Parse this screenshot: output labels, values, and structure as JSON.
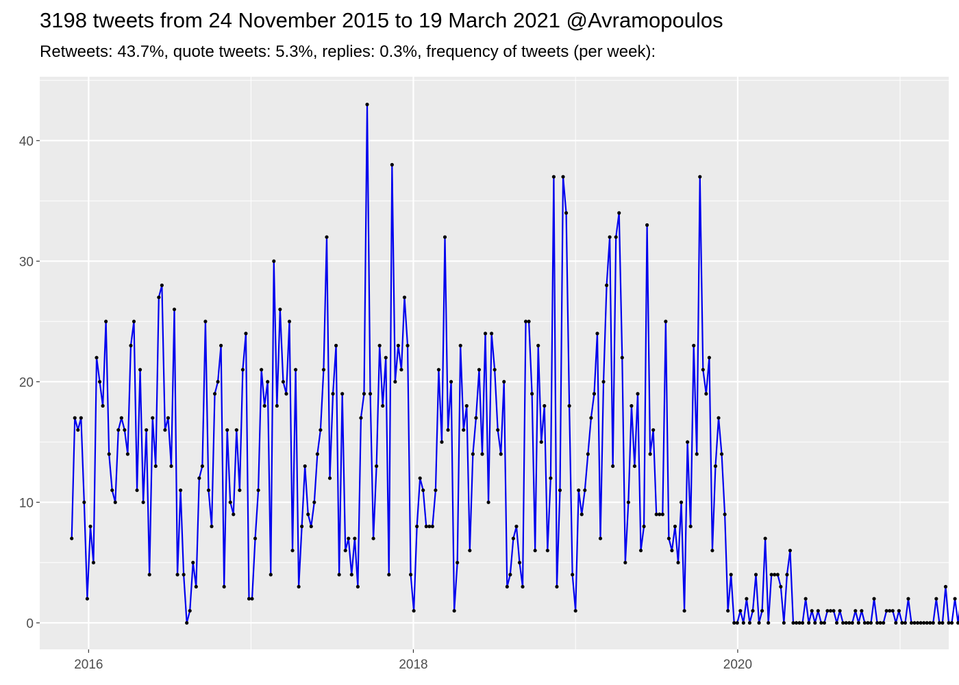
{
  "chart_data": {
    "type": "line",
    "title": "3198 tweets from 24 November 2015 to 19 March 2021 @Avramopoulos",
    "subtitle": "Retweets: 43.7%, quote tweets: 5.3%, replies: 0.3%, frequency of tweets (per week):",
    "xlabel": "",
    "ylabel": "",
    "x_start": "2015-11-24",
    "x_interval": "week",
    "xlim": [
      "2015-09-13",
      "2021-04-20"
    ],
    "ylim": [
      -2.2,
      45.3
    ],
    "x_ticks": [
      {
        "date": "2016-01-01",
        "label": "2016"
      },
      {
        "date": "2018-01-01",
        "label": "2018"
      },
      {
        "date": "2020-01-01",
        "label": "2020"
      }
    ],
    "y_ticks": [
      0,
      10,
      20,
      30,
      40
    ],
    "grid": true,
    "legend": "none",
    "colors": {
      "line": "#0000ee",
      "point": "#000000",
      "panel": "#ebebeb",
      "grid": "#ffffff"
    },
    "series": [
      {
        "values": [
          7,
          17,
          16,
          17,
          10,
          2,
          8,
          5,
          22,
          20,
          18,
          25,
          14,
          11,
          10,
          16,
          17,
          16,
          14,
          23,
          25,
          11,
          21,
          10,
          16,
          4,
          17,
          13,
          27,
          28,
          16,
          17,
          13,
          26,
          4,
          11,
          4,
          0,
          1,
          5,
          3,
          12,
          13,
          25,
          11,
          8,
          19,
          20,
          23,
          3,
          16,
          10,
          9,
          16,
          11,
          21,
          24,
          2,
          2,
          7,
          11,
          21,
          18,
          20,
          4,
          30,
          18,
          26,
          20,
          19,
          25,
          6,
          21,
          3,
          8,
          13,
          9,
          8,
          10,
          14,
          16,
          21,
          32,
          12,
          19,
          23,
          4,
          19,
          6,
          7,
          4,
          7,
          3,
          17,
          19,
          43,
          19,
          7,
          13,
          23,
          18,
          22,
          4,
          38,
          20,
          23,
          21,
          27,
          23,
          4,
          1,
          8,
          12,
          11,
          8,
          8,
          8,
          11,
          21,
          15,
          32,
          16,
          20,
          1,
          5,
          23,
          16,
          18,
          6,
          14,
          17,
          21,
          14,
          24,
          10,
          24,
          21,
          16,
          14,
          20,
          3,
          4,
          7,
          8,
          5,
          3,
          25,
          25,
          19,
          6,
          23,
          15,
          18,
          6,
          12,
          37,
          3,
          11,
          37,
          34,
          18,
          4,
          1,
          11,
          9,
          11,
          14,
          17,
          19,
          24,
          7,
          20,
          28,
          32,
          13,
          32,
          34,
          22,
          5,
          10,
          18,
          13,
          19,
          6,
          8,
          33,
          14,
          16,
          9,
          9,
          9,
          25,
          7,
          6,
          8,
          5,
          10,
          1,
          15,
          8,
          23,
          14,
          37,
          21,
          19,
          22,
          6,
          13,
          17,
          14,
          9,
          1,
          4,
          0,
          0,
          1,
          0,
          2,
          0,
          1,
          4,
          0,
          1,
          7,
          0,
          4,
          4,
          4,
          3,
          0,
          4,
          6,
          0,
          0,
          0,
          0,
          2,
          0,
          1,
          0,
          1,
          0,
          0,
          1,
          1,
          1,
          0,
          1,
          0,
          0,
          0,
          0,
          1,
          0,
          1,
          0,
          0,
          0,
          2,
          0,
          0,
          0,
          1,
          1,
          1,
          0,
          1,
          0,
          0,
          2,
          0,
          0,
          0,
          0,
          0,
          0,
          0,
          0,
          2,
          0,
          0,
          3,
          0,
          0,
          2,
          0,
          2
        ]
      }
    ]
  }
}
